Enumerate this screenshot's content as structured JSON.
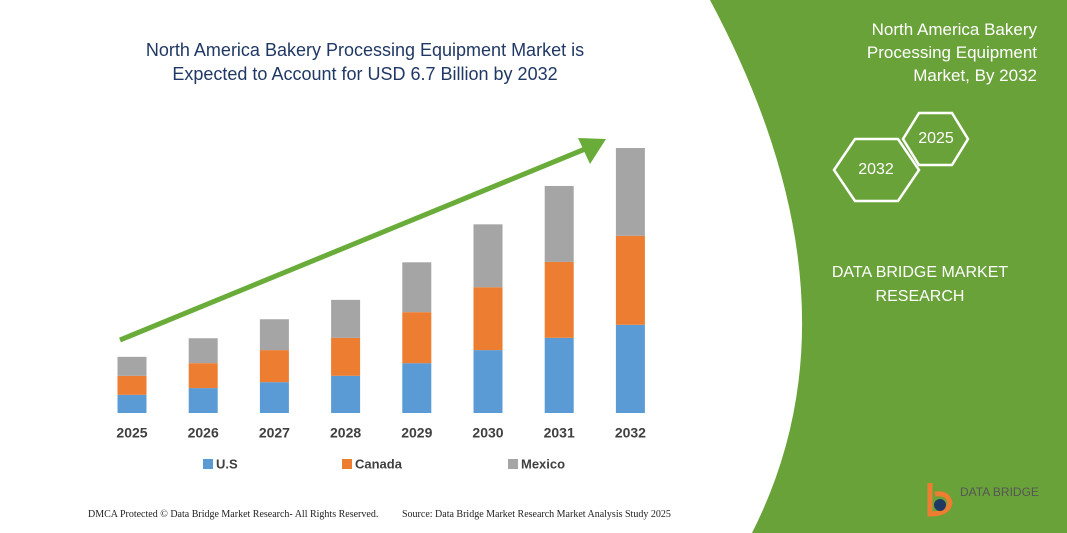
{
  "chart_data": {
    "type": "stacked-bar",
    "title": "North America Bakery Processing Equipment Market is Expected to Account for  USD 6.7 Billion by 2032",
    "categories": [
      "2025",
      "2026",
      "2027",
      "2028",
      "2029",
      "2030",
      "2031",
      "2032"
    ],
    "series": [
      {
        "name": "U.S",
        "color": "#5b9bd5",
        "values": [
          0.46,
          0.63,
          0.78,
          0.94,
          1.26,
          1.59,
          1.9,
          2.23
        ]
      },
      {
        "name": "Canada",
        "color": "#ed7d31",
        "values": [
          0.48,
          0.63,
          0.81,
          0.96,
          1.29,
          1.59,
          1.92,
          2.25
        ]
      },
      {
        "name": "Mexico",
        "color": "#a5a5a5",
        "values": [
          0.48,
          0.63,
          0.78,
          0.96,
          1.26,
          1.59,
          1.92,
          2.22
        ]
      }
    ]
  },
  "panel": {
    "title": "North America Bakery Processing Equipment Market, By 2032",
    "hex_end": "2032",
    "hex_start": "2025",
    "brand": "DATA BRIDGE MARKET RESEARCH"
  },
  "footer": {
    "left": "DMCA Protected © Data Bridge Market Research-  All Rights Reserved.",
    "right": "Source: Data Bridge Market Research  Market Analysis Study 2025",
    "logo": "DATA BRIDGE"
  }
}
